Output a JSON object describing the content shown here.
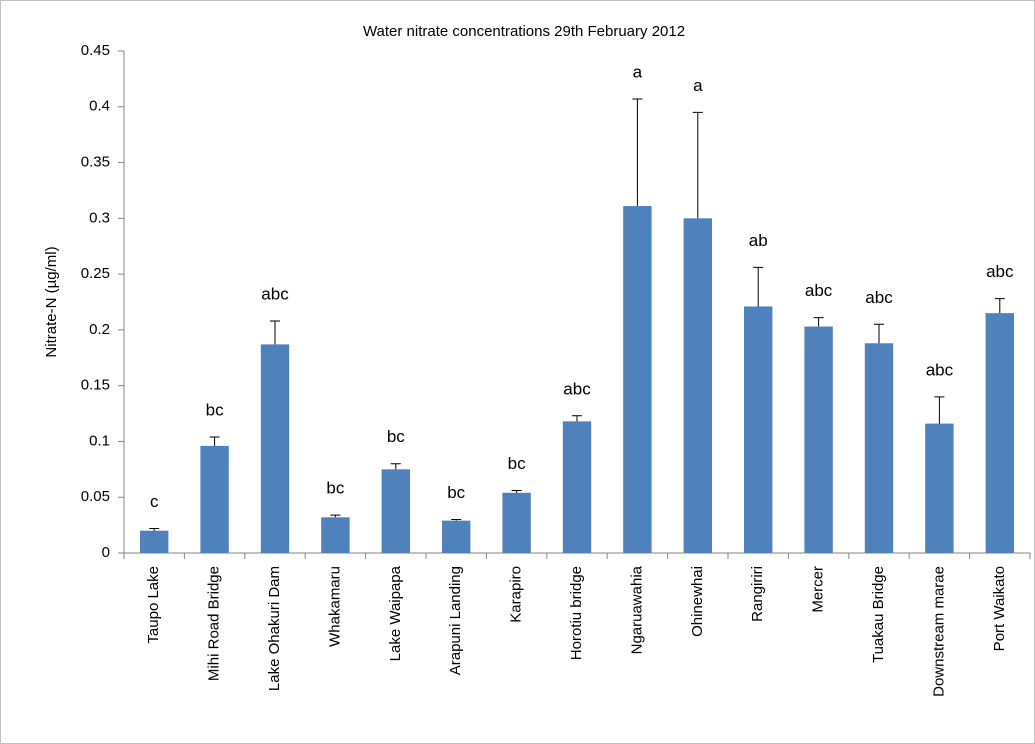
{
  "chart_data": {
    "type": "bar",
    "title": "Water nitrate concentrations 29th February 2012",
    "y_label": "Nitrate-N (µg/ml)",
    "categories": [
      "Taupo Lake",
      "Mihi Road Bridge",
      "Lake Ohakuri Dam",
      "Whakamaru",
      "Lake Waipapa",
      "Arapuni Landing",
      "Karapiro",
      "Horotiu bridge",
      "Ngaruawahia",
      "Ohinewhai",
      "Rangiriri",
      "Mercer",
      "Tuakau Bridge",
      "Downstream marae",
      "Port Waikato"
    ],
    "values": [
      0.02,
      0.096,
      0.187,
      0.032,
      0.075,
      0.029,
      0.054,
      0.118,
      0.311,
      0.3,
      0.221,
      0.203,
      0.188,
      0.116,
      0.215
    ],
    "errors": [
      0.002,
      0.008,
      0.021,
      0.002,
      0.005,
      0.001,
      0.002,
      0.005,
      0.096,
      0.095,
      0.035,
      0.008,
      0.017,
      0.024,
      0.013
    ],
    "annotations": [
      "c",
      "bc",
      "abc",
      "bc",
      "bc",
      "bc",
      "bc",
      "abc",
      "a",
      "a",
      "ab",
      "abc",
      "abc",
      "abc",
      "abc"
    ],
    "color": "#4f81bd",
    "ylim": [
      0,
      0.45
    ],
    "yticks": [
      0,
      0.05,
      0.1,
      0.15,
      0.2,
      0.25,
      0.3,
      0.35,
      0.4,
      0.45
    ],
    "grid": false
  }
}
